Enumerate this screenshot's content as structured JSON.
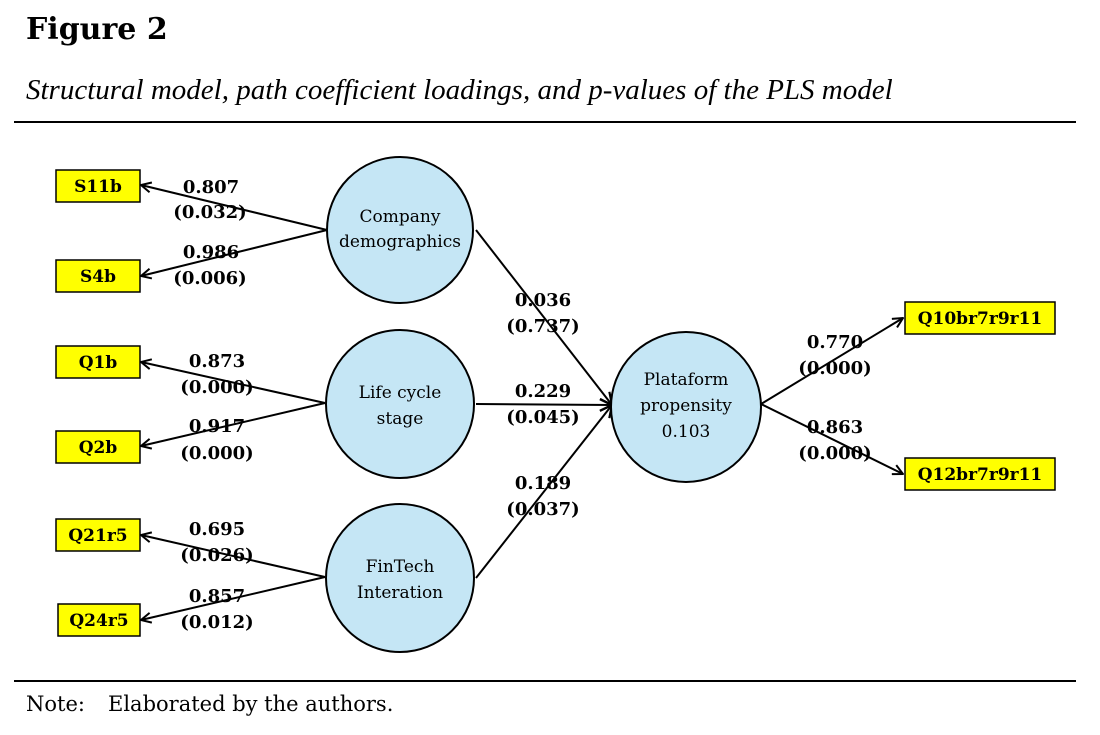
{
  "figure_label": "Figure 2",
  "caption": "Structural model, path coefficient loadings, and p-values of the PLS model",
  "note": {
    "label": "Note:",
    "text": "Elaborated by the authors."
  },
  "colors": {
    "latent_fill": "#c5e6f5",
    "indicator_fill": "#ffff00",
    "line": "#000000"
  },
  "latents": {
    "company": [
      "Company",
      "demographics"
    ],
    "lifecycle": [
      "Life cycle",
      "stage"
    ],
    "fintech": [
      "FinTech",
      "Interation"
    ],
    "platform": [
      "Plataform",
      "propensity",
      "0.103"
    ]
  },
  "indicators": {
    "s11b": "S11b",
    "s4b": "S4b",
    "q1b": "Q1b",
    "q2b": "Q2b",
    "q21r5": "Q21r5",
    "q24r5": "Q24r5",
    "q10": "Q10br7r9r11",
    "q12": "Q12br7r9r11"
  },
  "loadings": {
    "s11b": [
      "0.807",
      "(0.032)"
    ],
    "s4b": [
      "0.986",
      "(0.006)"
    ],
    "q1b": [
      "0.873",
      "(0.000)"
    ],
    "q2b": [
      "0.917",
      "(0.000)"
    ],
    "q21r5": [
      "0.695",
      "(0.026)"
    ],
    "q24r5": [
      "0.857",
      "(0.012)"
    ],
    "q10": [
      "0.770",
      "(0.000)"
    ],
    "q12": [
      "0.863",
      "(0.000)"
    ]
  },
  "paths": {
    "company": [
      "0.036",
      "(0.737)"
    ],
    "lifecycle": [
      "0.229",
      "(0.045)"
    ],
    "fintech": [
      "0.189",
      "(0.037)"
    ]
  }
}
